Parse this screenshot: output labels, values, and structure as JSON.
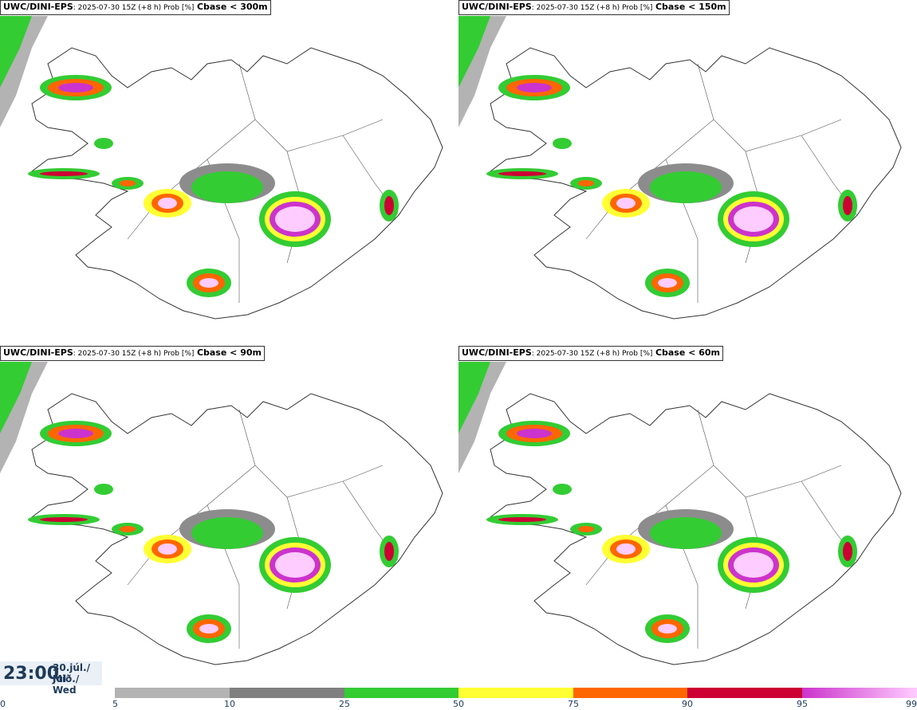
{
  "panels": [
    {
      "model": "UWC/DINI-EPS",
      "run": ": 2025-07-30 15Z (+8 h) Prob [%]",
      "condition": "Cbase < 300m"
    },
    {
      "model": "UWC/DINI-EPS",
      "run": ": 2025-07-30 15Z (+8 h) Prob [%]",
      "condition": "Cbase < 150m"
    },
    {
      "model": "UWC/DINI-EPS",
      "run": ": 2025-07-30 15Z (+8 h) Prob [%]",
      "condition": "Cbase < 90m"
    },
    {
      "model": "UWC/DINI-EPS",
      "run": ": 2025-07-30 15Z (+8 h) Prob [%]",
      "condition": "Cbase < 60m"
    }
  ],
  "valid_time": {
    "time": "23:00",
    "date_line1": "30.júl./ Jul",
    "date_line2": "Mið./ Wed"
  },
  "colorbar": {
    "ticks": [
      "0",
      "5",
      "10",
      "25",
      "50",
      "75",
      "90",
      "95",
      "99"
    ],
    "colors": [
      "#ffffff",
      "#b3b3b3",
      "#7f7f7f",
      "#33cc33",
      "#ffff33",
      "#ff6600",
      "#cc0033",
      "#cc33cc",
      "#ffccff"
    ]
  },
  "map_colors": {
    "coast": "#333333",
    "land": "#ffffff",
    "p10": "#8c8c8c",
    "p25": "#33cc33",
    "p50": "#ffff33",
    "p75": "#ff6600",
    "p90": "#cc0033",
    "p95": "#cc33cc",
    "p99": "#ffccff"
  }
}
